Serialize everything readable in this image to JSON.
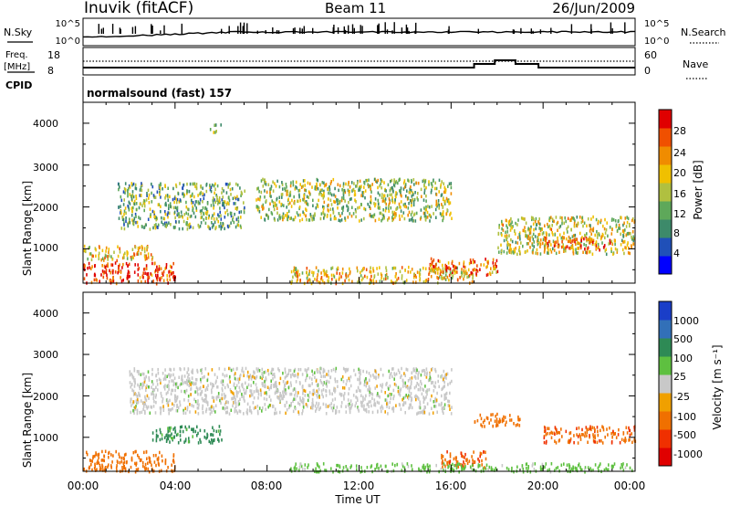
{
  "header": {
    "station": "Inuvik (fitACF)",
    "beam": "Beam 11",
    "date": "26/Jun/2009"
  },
  "top_panels": {
    "nsky_label": "N.Sky",
    "nsky_ticks": [
      "10^5",
      "10^0"
    ],
    "nsearch_label": "N.Search",
    "freq_label_1": "Freq.",
    "freq_label_2": "[MHz]",
    "freq_ticks": [
      "18",
      "8"
    ],
    "nave_label": "Nave",
    "nave_ticks": [
      "60",
      "0"
    ],
    "cpid_label": "CPID",
    "cpid_value": "normalsound (fast) 157"
  },
  "power_panel": {
    "ylabel": "Slant Range [km]",
    "yticks": [
      "4000",
      "3000",
      "2000",
      "1000"
    ],
    "colorbar_label": "Power [dB]",
    "colorbar_ticks": [
      "28",
      "24",
      "20",
      "16",
      "12",
      "8",
      "4"
    ],
    "colorbar_colors": [
      "#0000ff",
      "#2050b8",
      "#3d8a6a",
      "#5ea85a",
      "#b0c040",
      "#f0c000",
      "#f08c00",
      "#f05000",
      "#e00000"
    ]
  },
  "velocity_panel": {
    "ylabel": "Slant Range [km]",
    "yticks": [
      "4000",
      "3000",
      "2000",
      "1000"
    ],
    "colorbar_label": "Velocity [m s⁻¹]",
    "colorbar_ticks": [
      "1000",
      "500",
      "100",
      "25",
      "-25",
      "-100",
      "-500",
      "-1000"
    ],
    "colorbar_colors": [
      "#1a3ec8",
      "#3270b8",
      "#2e8a55",
      "#5ec040",
      "#c8c8c8",
      "#f0a000",
      "#f07000",
      "#f03000",
      "#e00000"
    ]
  },
  "x_axis": {
    "ticks": [
      "00:00",
      "04:00",
      "08:00",
      "12:00",
      "16:00",
      "20:00",
      "00:00"
    ],
    "label": "Time UT"
  },
  "chart_data": {
    "type": "heatmap",
    "x_range_hours": [
      0,
      24
    ],
    "y_range_km": [
      180,
      4500
    ],
    "power_regions": [
      {
        "t": [
          0,
          4
        ],
        "r": [
          200,
          700
        ],
        "level_db": 26
      },
      {
        "t": [
          0,
          3
        ],
        "r": [
          750,
          1100
        ],
        "level_db": 18
      },
      {
        "t": [
          1.5,
          7
        ],
        "r": [
          1500,
          2600
        ],
        "level_db": 12
      },
      {
        "t": [
          7.5,
          16
        ],
        "r": [
          1700,
          2700
        ],
        "level_db": 14
      },
      {
        "t": [
          9,
          17
        ],
        "r": [
          200,
          600
        ],
        "level_db": 18
      },
      {
        "t": [
          15,
          18
        ],
        "r": [
          400,
          800
        ],
        "level_db": 22
      },
      {
        "t": [
          18,
          24
        ],
        "r": [
          900,
          1800
        ],
        "level_db": 16
      },
      {
        "t": [
          20,
          23
        ],
        "r": [
          1000,
          1300
        ],
        "level_db": 24
      },
      {
        "t": [
          5.5,
          6
        ],
        "r": [
          3800,
          4000
        ],
        "level_db": 10
      }
    ],
    "velocity_regions": [
      {
        "t": [
          0,
          4
        ],
        "r": [
          200,
          700
        ],
        "level_ms": -300
      },
      {
        "t": [
          3,
          6
        ],
        "r": [
          900,
          1300
        ],
        "level_ms": 150
      },
      {
        "t": [
          2,
          16
        ],
        "r": [
          1600,
          2700
        ],
        "level_ms": 0
      },
      {
        "t": [
          15.5,
          17.5
        ],
        "r": [
          300,
          700
        ],
        "level_ms": -400
      },
      {
        "t": [
          17,
          19
        ],
        "r": [
          1300,
          1600
        ],
        "level_ms": -300
      },
      {
        "t": [
          20,
          24
        ],
        "r": [
          900,
          1300
        ],
        "level_ms": -400
      },
      {
        "t": [
          9,
          24
        ],
        "r": [
          200,
          400
        ],
        "level_ms": 50
      }
    ]
  }
}
